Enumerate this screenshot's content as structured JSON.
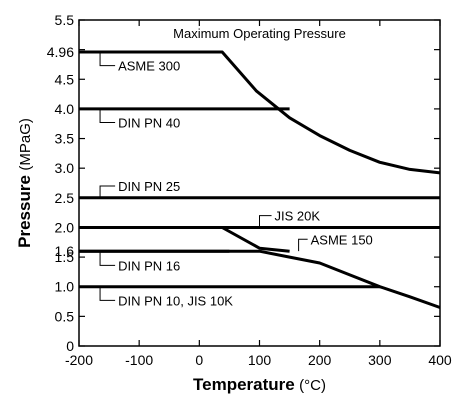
{
  "chart_data": {
    "type": "line",
    "title": "Maximum Operating Pressure",
    "xlabel": {
      "main": "Temperature",
      "unit": "(°C)"
    },
    "ylabel": {
      "main": "Pressure",
      "unit": "(MPaG)"
    },
    "xlim": [
      -200,
      400
    ],
    "ylim": [
      0,
      5.5
    ],
    "x_ticks": [
      -200,
      -100,
      0,
      100,
      200,
      300,
      400
    ],
    "y_ticks": [
      0,
      0.5,
      1.0,
      1.5,
      2.0,
      2.5,
      3.0,
      3.5,
      4.0,
      4.5,
      5.0,
      5.5
    ],
    "y_tick_labels": [
      "0",
      "0.5",
      "1.0",
      "1.5",
      "2.0",
      "2.5",
      "3.0",
      "3.5",
      "4.0",
      "4.5",
      "",
      "5.5"
    ],
    "y_extra_ticks": [
      {
        "value": 4.96,
        "label": "4.96"
      },
      {
        "value": 1.6,
        "label": "1.6"
      }
    ],
    "grid": false,
    "series": [
      {
        "name": "ASME 300",
        "points": [
          [
            -200,
            4.96
          ],
          [
            38,
            4.96
          ],
          [
            95,
            4.3
          ],
          [
            150,
            3.85
          ],
          [
            200,
            3.55
          ],
          [
            250,
            3.3
          ],
          [
            300,
            3.1
          ],
          [
            350,
            2.98
          ],
          [
            400,
            2.92
          ]
        ]
      },
      {
        "name": "DIN PN 40",
        "points": [
          [
            -200,
            4.0
          ],
          [
            150,
            4.0
          ]
        ]
      },
      {
        "name": "DIN PN 25",
        "points": [
          [
            -200,
            2.5
          ],
          [
            400,
            2.5
          ]
        ]
      },
      {
        "name": "JIS 20K",
        "points": [
          [
            -200,
            2.0
          ],
          [
            400,
            2.0
          ]
        ]
      },
      {
        "name": "ASME 150",
        "points": [
          [
            -200,
            1.6
          ],
          [
            38,
            1.6
          ],
          [
            100,
            1.6
          ],
          [
            150,
            1.5
          ],
          [
            200,
            1.4
          ],
          [
            250,
            1.2
          ],
          [
            300,
            1.0
          ],
          [
            350,
            0.83
          ],
          [
            400,
            0.65
          ]
        ]
      },
      {
        "name": "DIN PN 16",
        "points": [
          [
            -200,
            1.6
          ],
          [
            50,
            1.6
          ]
        ]
      },
      {
        "name": "DIN PN 10, JIS 10K",
        "points": [
          [
            -200,
            1.0
          ],
          [
            300,
            1.0
          ]
        ]
      },
      {
        "name": "",
        "points": [
          [
            38,
            2.0
          ],
          [
            100,
            1.65
          ],
          [
            150,
            1.6
          ]
        ]
      }
    ],
    "labels": [
      {
        "text": "ASME 300",
        "anchor": [
          -165,
          4.96
        ],
        "pos": [
          -135,
          4.73
        ]
      },
      {
        "text": "DIN PN 40",
        "anchor": [
          -165,
          4.0
        ],
        "pos": [
          -135,
          3.77
        ]
      },
      {
        "text": "DIN PN 25",
        "anchor": [
          -165,
          2.5
        ],
        "pos": [
          -135,
          2.7
        ]
      },
      {
        "text": "JIS 20K",
        "anchor": [
          100,
          2.0
        ],
        "pos": [
          125,
          2.2
        ]
      },
      {
        "text": "ASME 150",
        "anchor": [
          165,
          1.6
        ],
        "pos": [
          185,
          1.8
        ]
      },
      {
        "text": "DIN PN 16",
        "anchor": [
          -165,
          1.6
        ],
        "pos": [
          -135,
          1.36
        ]
      },
      {
        "text": "DIN PN 10, JIS 10K",
        "anchor": [
          -165,
          1.0
        ],
        "pos": [
          -135,
          0.77
        ]
      }
    ]
  }
}
